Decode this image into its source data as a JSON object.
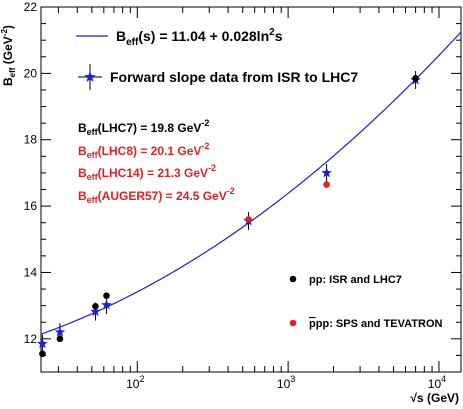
{
  "chart_data": {
    "type": "scatter",
    "x_scale": "log",
    "xlim": [
      23,
      14000
    ],
    "ylim": [
      11,
      22
    ],
    "xlabel": "√s (GeV)",
    "ylabel": {
      "main": "B",
      "sub": "eff",
      "unit_pre": " (GeV",
      "unit_sup": "-2",
      "unit_post": ")"
    },
    "y_ticks": [
      12,
      14,
      16,
      18,
      20,
      22
    ],
    "x_major_ticks": [
      100,
      1000,
      10000
    ],
    "x_tick_labels": [
      {
        "base": "10",
        "exp": "2"
      },
      {
        "base": "10",
        "exp": "3"
      },
      {
        "base": "10",
        "exp": "4"
      }
    ],
    "fit": {
      "a": 11.04,
      "b": 0.028,
      "color": "#1f1fd6",
      "label_main": "B",
      "label_sub": "eff",
      "label_rest": "(s) = 11.04 + 0.028ln",
      "label_sup": "2",
      "label_end": "s"
    },
    "data_legend_label": "Forward slope data from ISR to LHC7",
    "series": [
      {
        "name": "pp: ISR and LHC7",
        "color": "#000000",
        "points": [
          [
            23.5,
            11.55
          ],
          [
            30.7,
            12.0
          ],
          [
            52.8,
            12.98
          ],
          [
            62.5,
            13.3
          ],
          [
            7000,
            19.85
          ]
        ]
      },
      {
        "name": "p̄p: SPS and TEVATRON",
        "color": "#e41e26",
        "points": [
          [
            546,
            15.6
          ],
          [
            1800,
            16.65
          ]
        ]
      },
      {
        "name": "Forward slope data",
        "color": "#1f1fd6",
        "points": [
          [
            23.5,
            11.85
          ],
          [
            30.7,
            12.2
          ],
          [
            52.8,
            12.82
          ],
          [
            62.5,
            13.02
          ],
          [
            546,
            15.55
          ],
          [
            1800,
            17.0
          ],
          [
            7000,
            19.8
          ]
        ]
      }
    ],
    "key": {
      "pp_label": "pp: ISR and LHC7",
      "pbarp_prefix": "p",
      "pbarp_rest": "p: SPS and TEVATRON"
    },
    "annotations": [
      {
        "main": "B",
        "sub": "eff",
        "rest": "(LHC7) = 19.8 GeV",
        "sup": "-2",
        "color": "#000000"
      },
      {
        "main": "B",
        "sub": "eff",
        "rest": "(LHC8) = 20.1 GeV",
        "sup": "-2",
        "color": "#e41e26"
      },
      {
        "main": "B",
        "sub": "eff",
        "rest": "(LHC14) = 21.3 GeV",
        "sup": "-2",
        "color": "#e41e26"
      },
      {
        "main": "B",
        "sub": "eff",
        "rest": "(AUGER57) = 24.5 GeV",
        "sup": "-2",
        "color": "#e41e26"
      }
    ]
  }
}
